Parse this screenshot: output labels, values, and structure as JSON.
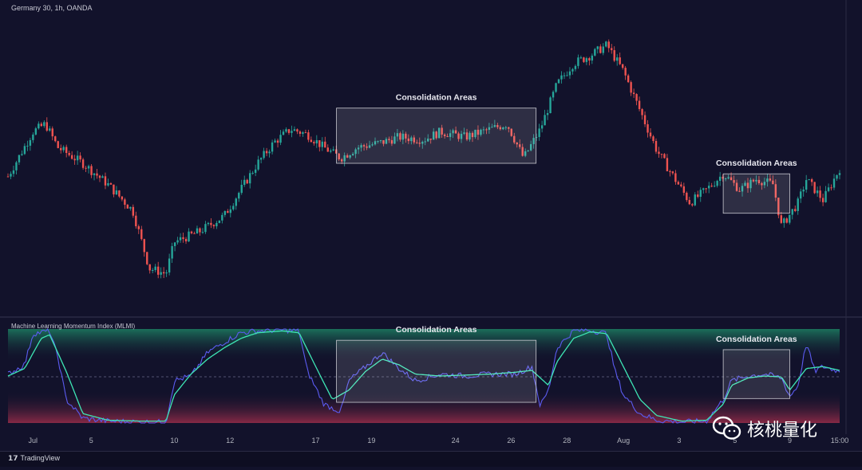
{
  "symbol_title": "Germany 30, 1h, OANDA",
  "indicator_title": "Machine Learning Momentum Index (MLMI)",
  "footer_brand": "TradingView",
  "watermark_text": "核桃量化",
  "colors": {
    "background": "#12122b",
    "bull": "#26a69a",
    "bear": "#ef5350",
    "mlmi_line": "#5b5bf0",
    "mlmi_ma": "#3ee6b5",
    "box_fill": "rgba(255,255,255,0.12)",
    "box_stroke": "#c8c8d0",
    "upper_zone": "#1e8f6a",
    "lower_zone": "#9b2d4a"
  },
  "chart_data": [
    {
      "type": "candlestick",
      "title": "Germany 30, 1h, OANDA",
      "x_ticks": [
        "Jul",
        "5",
        "10",
        "12",
        "17",
        "19",
        "24",
        "26",
        "28",
        "Aug",
        "3",
        "5",
        "9",
        "15:00"
      ],
      "price_path": [
        [
          0,
          0.45
        ],
        [
          0.03,
          0.62
        ],
        [
          0.045,
          0.65
        ],
        [
          0.06,
          0.56
        ],
        [
          0.09,
          0.5
        ],
        [
          0.12,
          0.42
        ],
        [
          0.15,
          0.32
        ],
        [
          0.17,
          0.1
        ],
        [
          0.19,
          0.08
        ],
        [
          0.2,
          0.2
        ],
        [
          0.23,
          0.24
        ],
        [
          0.26,
          0.3
        ],
        [
          0.28,
          0.4
        ],
        [
          0.3,
          0.5
        ],
        [
          0.32,
          0.58
        ],
        [
          0.34,
          0.63
        ],
        [
          0.36,
          0.61
        ],
        [
          0.38,
          0.56
        ],
        [
          0.4,
          0.52
        ],
        [
          0.42,
          0.56
        ],
        [
          0.45,
          0.58
        ],
        [
          0.47,
          0.6
        ],
        [
          0.5,
          0.59
        ],
        [
          0.52,
          0.62
        ],
        [
          0.55,
          0.6
        ],
        [
          0.58,
          0.63
        ],
        [
          0.6,
          0.65
        ],
        [
          0.62,
          0.52
        ],
        [
          0.64,
          0.63
        ],
        [
          0.66,
          0.8
        ],
        [
          0.68,
          0.88
        ],
        [
          0.7,
          0.91
        ],
        [
          0.72,
          0.95
        ],
        [
          0.74,
          0.85
        ],
        [
          0.76,
          0.7
        ],
        [
          0.78,
          0.55
        ],
        [
          0.8,
          0.45
        ],
        [
          0.82,
          0.35
        ],
        [
          0.84,
          0.4
        ],
        [
          0.86,
          0.46
        ],
        [
          0.88,
          0.4
        ],
        [
          0.9,
          0.44
        ],
        [
          0.92,
          0.42
        ],
        [
          0.93,
          0.26
        ],
        [
          0.95,
          0.35
        ],
        [
          0.96,
          0.44
        ],
        [
          0.98,
          0.36
        ],
        [
          1.0,
          0.48
        ]
      ],
      "boxes": [
        {
          "label": "Consolidation Areas",
          "x0": 0.395,
          "x1": 0.635,
          "y0": 0.5,
          "y1": 0.71
        },
        {
          "label": "Consolidation Areas",
          "x0": 0.86,
          "x1": 0.94,
          "y0": 0.31,
          "y1": 0.46
        }
      ]
    },
    {
      "type": "line",
      "title": "Machine Learning Momentum Index (MLMI)",
      "ylim": [
        0,
        1
      ],
      "series": [
        {
          "values": [
            [
              0,
              0.52
            ],
            [
              0.02,
              0.62
            ],
            [
              0.03,
              0.95
            ],
            [
              0.05,
              0.98
            ],
            [
              0.06,
              0.7
            ],
            [
              0.07,
              0.25
            ],
            [
              0.09,
              0.05
            ],
            [
              0.12,
              0.02
            ],
            [
              0.16,
              0.01
            ],
            [
              0.19,
              0.01
            ],
            [
              0.2,
              0.45
            ],
            [
              0.22,
              0.5
            ],
            [
              0.24,
              0.75
            ],
            [
              0.26,
              0.86
            ],
            [
              0.28,
              0.96
            ],
            [
              0.3,
              0.98
            ],
            [
              0.33,
              0.99
            ],
            [
              0.35,
              0.98
            ],
            [
              0.36,
              0.55
            ],
            [
              0.38,
              0.2
            ],
            [
              0.4,
              0.12
            ],
            [
              0.41,
              0.45
            ],
            [
              0.43,
              0.6
            ],
            [
              0.45,
              0.75
            ],
            [
              0.47,
              0.58
            ],
            [
              0.49,
              0.45
            ],
            [
              0.52,
              0.52
            ],
            [
              0.55,
              0.5
            ],
            [
              0.58,
              0.52
            ],
            [
              0.61,
              0.52
            ],
            [
              0.63,
              0.6
            ],
            [
              0.64,
              0.18
            ],
            [
              0.65,
              0.35
            ],
            [
              0.66,
              0.8
            ],
            [
              0.68,
              0.98
            ],
            [
              0.7,
              0.99
            ],
            [
              0.72,
              0.95
            ],
            [
              0.73,
              0.55
            ],
            [
              0.74,
              0.3
            ],
            [
              0.76,
              0.1
            ],
            [
              0.78,
              0.03
            ],
            [
              0.81,
              0.01
            ],
            [
              0.84,
              0.02
            ],
            [
              0.86,
              0.25
            ],
            [
              0.87,
              0.45
            ],
            [
              0.89,
              0.5
            ],
            [
              0.91,
              0.52
            ],
            [
              0.93,
              0.48
            ],
            [
              0.94,
              0.28
            ],
            [
              0.95,
              0.4
            ],
            [
              0.96,
              0.85
            ],
            [
              0.97,
              0.55
            ],
            [
              0.98,
              0.6
            ],
            [
              1.0,
              0.55
            ]
          ]
        },
        {
          "values": [
            [
              0,
              0.5
            ],
            [
              0.02,
              0.58
            ],
            [
              0.04,
              0.9
            ],
            [
              0.05,
              0.94
            ],
            [
              0.07,
              0.55
            ],
            [
              0.09,
              0.1
            ],
            [
              0.12,
              0.03
            ],
            [
              0.16,
              0.02
            ],
            [
              0.19,
              0.02
            ],
            [
              0.2,
              0.3
            ],
            [
              0.22,
              0.52
            ],
            [
              0.24,
              0.68
            ],
            [
              0.26,
              0.8
            ],
            [
              0.28,
              0.9
            ],
            [
              0.3,
              0.96
            ],
            [
              0.33,
              0.98
            ],
            [
              0.35,
              0.96
            ],
            [
              0.37,
              0.6
            ],
            [
              0.39,
              0.25
            ],
            [
              0.41,
              0.35
            ],
            [
              0.43,
              0.55
            ],
            [
              0.45,
              0.68
            ],
            [
              0.47,
              0.62
            ],
            [
              0.49,
              0.52
            ],
            [
              0.52,
              0.5
            ],
            [
              0.55,
              0.51
            ],
            [
              0.58,
              0.52
            ],
            [
              0.61,
              0.54
            ],
            [
              0.63,
              0.56
            ],
            [
              0.65,
              0.4
            ],
            [
              0.66,
              0.65
            ],
            [
              0.68,
              0.9
            ],
            [
              0.7,
              0.97
            ],
            [
              0.72,
              0.95
            ],
            [
              0.74,
              0.6
            ],
            [
              0.76,
              0.25
            ],
            [
              0.78,
              0.08
            ],
            [
              0.81,
              0.02
            ],
            [
              0.84,
              0.03
            ],
            [
              0.86,
              0.2
            ],
            [
              0.87,
              0.4
            ],
            [
              0.89,
              0.48
            ],
            [
              0.91,
              0.5
            ],
            [
              0.93,
              0.49
            ],
            [
              0.94,
              0.35
            ],
            [
              0.96,
              0.58
            ],
            [
              0.98,
              0.6
            ],
            [
              1.0,
              0.56
            ]
          ]
        }
      ],
      "boxes": [
        {
          "label": "Consolidation Areas",
          "x0": 0.395,
          "x1": 0.635,
          "y0": 0.22,
          "y1": 0.88
        },
        {
          "label": "Consolidation Areas",
          "x0": 0.86,
          "x1": 0.94,
          "y0": 0.26,
          "y1": 0.78
        }
      ]
    }
  ]
}
